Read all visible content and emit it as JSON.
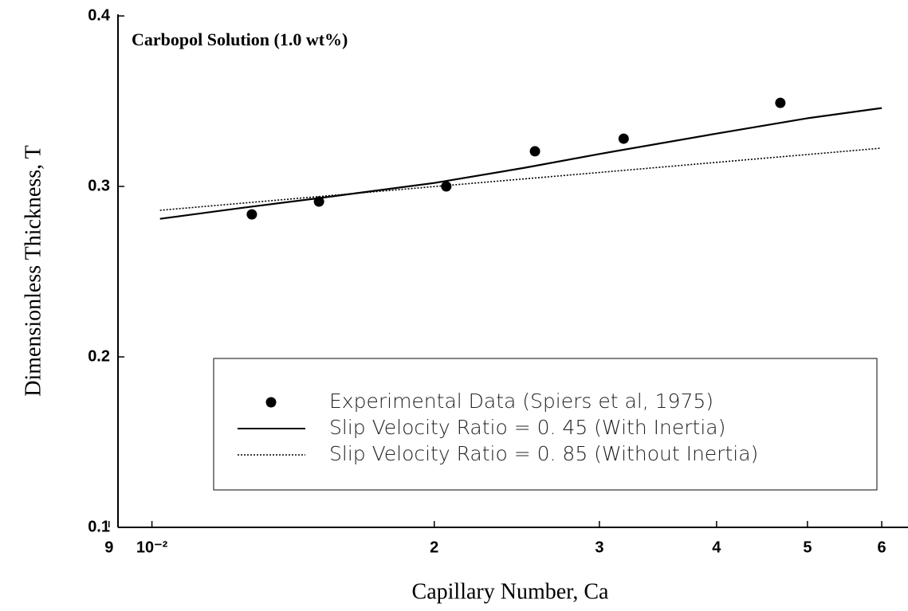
{
  "chart_data": {
    "type": "line",
    "title": "Carbopol Solution (1.0 wt%)",
    "x_label": "Capillary Number, Ca",
    "y_label": "Dimensionless Thickness, T",
    "xscale": "log",
    "xlim": [
      0.0092,
      0.064
    ],
    "xticks": [
      {
        "value": 0.009,
        "label": "9"
      },
      {
        "value": 0.01,
        "label": "10⁻²"
      },
      {
        "value": 0.02,
        "label": "2"
      },
      {
        "value": 0.03,
        "label": "3"
      },
      {
        "value": 0.04,
        "label": "4"
      },
      {
        "value": 0.05,
        "label": "5"
      },
      {
        "value": 0.06,
        "label": "6"
      }
    ],
    "ylim": [
      0.1,
      0.4
    ],
    "yticks": [
      0.1,
      0.2,
      0.3,
      0.4
    ],
    "legend": "lower right",
    "series": [
      {
        "name": "Experimental Data (Spiers et al, 1975)",
        "style": "markers",
        "color": "#000000",
        "x": [
          0.01278,
          0.01507,
          0.0206,
          0.02561,
          0.03184,
          0.04678
        ],
        "values": [
          0.2836,
          0.2911,
          0.3,
          0.3206,
          0.328,
          0.349
        ]
      },
      {
        "name": "Slip Velocity Ratio = 0. 45 (With Inertia)",
        "style": "solid",
        "color": "#000000",
        "x": [
          0.0102,
          0.0125,
          0.015,
          0.02,
          0.025,
          0.03,
          0.04,
          0.05,
          0.06
        ],
        "values": [
          0.281,
          0.2875,
          0.293,
          0.302,
          0.311,
          0.319,
          0.331,
          0.34,
          0.346
        ]
      },
      {
        "name": "Slip Velocity Ratio = 0. 85 (Without Inertia)",
        "style": "dotted",
        "color": "#000000",
        "x": [
          0.0102,
          0.02,
          0.03,
          0.04,
          0.0598
        ],
        "values": [
          0.286,
          0.2999,
          0.3082,
          0.3141,
          0.3224
        ]
      }
    ]
  }
}
